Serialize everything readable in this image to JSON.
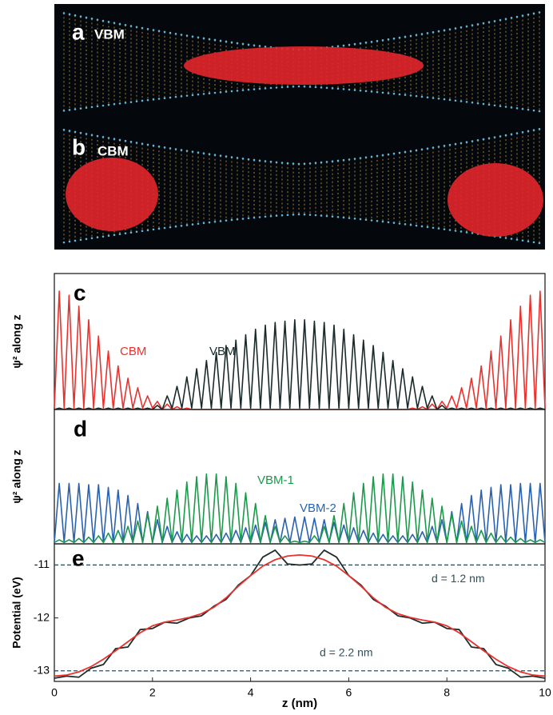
{
  "panels": [
    {
      "label": "a",
      "title": "VBM"
    },
    {
      "label": "b",
      "title": "CBM"
    }
  ],
  "chart_data": [
    {
      "type": "line",
      "panel_label": "c",
      "ylabel": "ψ² along z",
      "xlim": [
        0,
        10
      ],
      "ylim": [
        0,
        1
      ],
      "x": [
        0,
        0.1,
        0.2,
        0.3,
        0.4,
        0.5,
        0.6,
        0.7,
        0.8,
        0.9,
        1,
        1.1,
        1.2,
        1.3,
        1.4,
        1.5,
        1.6,
        1.7,
        1.8,
        1.9,
        2,
        2.1,
        2.2,
        2.3,
        2.4,
        2.5,
        2.6,
        2.7,
        2.8,
        2.9,
        3,
        3.1,
        3.2,
        3.3,
        3.4,
        3.5,
        3.6,
        3.7,
        3.8,
        3.9,
        4,
        4.1,
        4.2,
        4.3,
        4.4,
        4.5,
        4.6,
        4.7,
        4.8,
        4.9,
        5,
        5.1,
        5.2,
        5.3,
        5.4,
        5.5,
        5.6,
        5.7,
        5.8,
        5.9,
        6,
        6.1,
        6.2,
        6.3,
        6.4,
        6.5,
        6.6,
        6.7,
        6.8,
        6.9,
        7,
        7.1,
        7.2,
        7.3,
        7.4,
        7.5,
        7.6,
        7.7,
        7.8,
        7.9,
        8,
        8.1,
        8.2,
        8.3,
        8.4,
        8.5,
        8.6,
        8.7,
        8.8,
        8.9,
        9,
        9.1,
        9.2,
        9.3,
        9.4,
        9.5,
        9.6,
        9.7,
        9.8,
        9.9,
        10
      ],
      "series": [
        {
          "name": "CBM",
          "color": "#e8322e",
          "values": [
            0.01,
            0.87,
            0.01,
            0.84,
            0.01,
            0.76,
            0.01,
            0.66,
            0.01,
            0.54,
            0.01,
            0.43,
            0.01,
            0.32,
            0.01,
            0.23,
            0.01,
            0.16,
            0.01,
            0.1,
            0.01,
            0.06,
            0,
            0.04,
            0,
            0.02,
            0,
            0.01,
            0,
            0,
            0,
            0,
            0,
            0,
            0,
            0,
            0,
            0,
            0,
            0,
            0,
            0,
            0,
            0,
            0,
            0,
            0,
            0,
            0,
            0,
            0,
            0,
            0,
            0,
            0,
            0,
            0,
            0,
            0,
            0,
            0,
            0,
            0,
            0,
            0,
            0,
            0,
            0,
            0,
            0,
            0,
            0,
            0,
            0.01,
            0,
            0.02,
            0,
            0.04,
            0,
            0.06,
            0.01,
            0.1,
            0.01,
            0.16,
            0.01,
            0.23,
            0.01,
            0.32,
            0.01,
            0.43,
            0.01,
            0.54,
            0.01,
            0.66,
            0.01,
            0.76,
            0.01,
            0.84,
            0.01,
            0.87,
            0.01
          ]
        },
        {
          "name": "VBM",
          "color": "#1a2a2a",
          "values": [
            0,
            0.01,
            0,
            0.01,
            0,
            0.01,
            0,
            0.01,
            0,
            0.01,
            0,
            0.01,
            0,
            0.01,
            0,
            0.01,
            0,
            0.01,
            0,
            0.01,
            0,
            0.03,
            0,
            0.1,
            0.01,
            0.17,
            0.01,
            0.24,
            0.01,
            0.3,
            0.01,
            0.36,
            0.01,
            0.42,
            0.01,
            0.47,
            0.01,
            0.51,
            0.01,
            0.55,
            0.01,
            0.59,
            0.01,
            0.62,
            0.01,
            0.64,
            0.01,
            0.65,
            0.01,
            0.66,
            0.01,
            0.66,
            0.01,
            0.65,
            0.01,
            0.64,
            0.01,
            0.62,
            0.01,
            0.59,
            0.01,
            0.55,
            0.01,
            0.51,
            0.01,
            0.47,
            0.01,
            0.42,
            0.01,
            0.36,
            0.01,
            0.3,
            0.01,
            0.24,
            0.01,
            0.17,
            0.01,
            0.1,
            0,
            0.03,
            0,
            0.01,
            0,
            0.01,
            0,
            0.01,
            0,
            0.01,
            0,
            0.01,
            0,
            0.01,
            0,
            0.01,
            0,
            0.01,
            0,
            0.01,
            0,
            0.01,
            0
          ]
        }
      ]
    },
    {
      "type": "line",
      "panel_label": "d",
      "ylabel": "ψ² along z",
      "xlim": [
        0,
        10
      ],
      "ylim": [
        0,
        1
      ],
      "x": [
        0,
        0.1,
        0.2,
        0.3,
        0.4,
        0.5,
        0.6,
        0.7,
        0.8,
        0.9,
        1,
        1.1,
        1.2,
        1.3,
        1.4,
        1.5,
        1.6,
        1.7,
        1.8,
        1.9,
        2,
        2.1,
        2.2,
        2.3,
        2.4,
        2.5,
        2.6,
        2.7,
        2.8,
        2.9,
        3,
        3.1,
        3.2,
        3.3,
        3.4,
        3.5,
        3.6,
        3.7,
        3.8,
        3.9,
        4,
        4.1,
        4.2,
        4.3,
        4.4,
        4.5,
        4.6,
        4.7,
        4.8,
        4.9,
        5,
        5.1,
        5.2,
        5.3,
        5.4,
        5.5,
        5.6,
        5.7,
        5.8,
        5.9,
        6,
        6.1,
        6.2,
        6.3,
        6.4,
        6.5,
        6.6,
        6.7,
        6.8,
        6.9,
        7,
        7.1,
        7.2,
        7.3,
        7.4,
        7.5,
        7.6,
        7.7,
        7.8,
        7.9,
        8,
        8.1,
        8.2,
        8.3,
        8.4,
        8.5,
        8.6,
        8.7,
        8.8,
        8.9,
        9,
        9.1,
        9.2,
        9.3,
        9.4,
        9.5,
        9.6,
        9.7,
        9.8,
        9.9,
        10
      ],
      "series": [
        {
          "name": "VBM-2",
          "color": "#2a62b0",
          "values": [
            0.01,
            0.45,
            0.01,
            0.45,
            0.01,
            0.45,
            0.01,
            0.44,
            0.01,
            0.44,
            0.01,
            0.42,
            0.01,
            0.4,
            0.01,
            0.36,
            0.01,
            0.3,
            0.01,
            0.24,
            0.01,
            0.18,
            0.01,
            0.13,
            0.01,
            0.09,
            0.01,
            0.07,
            0.01,
            0.06,
            0.01,
            0.06,
            0.01,
            0.07,
            0.01,
            0.08,
            0.01,
            0.1,
            0.01,
            0.12,
            0.01,
            0.14,
            0.01,
            0.16,
            0.01,
            0.18,
            0.01,
            0.19,
            0.01,
            0.2,
            0.01,
            0.2,
            0.01,
            0.19,
            0.01,
            0.18,
            0.01,
            0.16,
            0.01,
            0.14,
            0.01,
            0.12,
            0.01,
            0.1,
            0.01,
            0.08,
            0.01,
            0.07,
            0.01,
            0.06,
            0.01,
            0.06,
            0.01,
            0.07,
            0.01,
            0.09,
            0.01,
            0.13,
            0.01,
            0.18,
            0.01,
            0.24,
            0.01,
            0.3,
            0.01,
            0.36,
            0.01,
            0.4,
            0.01,
            0.42,
            0.01,
            0.44,
            0.01,
            0.44,
            0.01,
            0.45,
            0.01,
            0.45,
            0.01,
            0.45,
            0.01
          ]
        },
        {
          "name": "VBM-1",
          "color": "#1a9a4a",
          "values": [
            0.01,
            0.03,
            0.01,
            0.03,
            0.01,
            0.04,
            0.01,
            0.05,
            0.01,
            0.06,
            0.01,
            0.08,
            0.01,
            0.1,
            0.01,
            0.13,
            0.01,
            0.17,
            0.01,
            0.22,
            0.01,
            0.28,
            0.01,
            0.34,
            0.01,
            0.4,
            0.01,
            0.46,
            0.01,
            0.5,
            0.01,
            0.52,
            0.01,
            0.52,
            0.01,
            0.5,
            0.01,
            0.45,
            0.01,
            0.38,
            0.01,
            0.3,
            0.01,
            0.21,
            0.01,
            0.13,
            0.01,
            0.06,
            0.01,
            0.02,
            0.01,
            0.02,
            0.01,
            0.06,
            0.01,
            0.13,
            0.01,
            0.21,
            0.01,
            0.3,
            0.01,
            0.38,
            0.01,
            0.45,
            0.01,
            0.5,
            0.01,
            0.52,
            0.01,
            0.52,
            0.01,
            0.5,
            0.01,
            0.46,
            0.01,
            0.4,
            0.01,
            0.34,
            0.01,
            0.28,
            0.01,
            0.22,
            0.01,
            0.17,
            0.01,
            0.13,
            0.01,
            0.1,
            0.01,
            0.08,
            0.01,
            0.06,
            0.01,
            0.05,
            0.01,
            0.04,
            0.01,
            0.03,
            0.01,
            0.03,
            0.01
          ]
        }
      ]
    },
    {
      "type": "line",
      "panel_label": "e",
      "ylabel": "Potential (eV)",
      "xlabel": "z (nm)",
      "xlim": [
        0,
        10
      ],
      "ylim": [
        -13.2,
        -10.6
      ],
      "xticks": [
        0,
        2,
        4,
        6,
        8,
        10
      ],
      "yticks": [
        -11,
        -12,
        -13
      ],
      "reference_lines": [
        {
          "value": -11,
          "label": "d = 1.2 nm"
        },
        {
          "value": -13,
          "label": "d = 2.2 nm"
        }
      ],
      "x": [
        0,
        0.25,
        0.5,
        0.75,
        1,
        1.25,
        1.5,
        1.75,
        2,
        2.25,
        2.5,
        2.75,
        3,
        3.25,
        3.5,
        3.75,
        4,
        4.25,
        4.5,
        4.75,
        5,
        5.25,
        5.5,
        5.75,
        6,
        6.25,
        6.5,
        6.75,
        7,
        7.25,
        7.5,
        7.75,
        8,
        8.25,
        8.5,
        8.75,
        9,
        9.25,
        9.5,
        9.75,
        10
      ],
      "series": [
        {
          "color": "#1f2d2d",
          "values": [
            -13.14,
            -13.1,
            -13.12,
            -12.95,
            -12.88,
            -12.58,
            -12.55,
            -12.22,
            -12.2,
            -12.08,
            -12.1,
            -12,
            -11.96,
            -11.78,
            -11.65,
            -11.38,
            -11.2,
            -10.85,
            -10.72,
            -10.98,
            -11,
            -10.98,
            -10.72,
            -10.85,
            -11.2,
            -11.38,
            -11.65,
            -11.78,
            -11.96,
            -12,
            -12.1,
            -12.08,
            -12.2,
            -12.22,
            -12.55,
            -12.58,
            -12.88,
            -12.95,
            -13.12,
            -13.1,
            -13.14
          ]
        },
        {
          "color": "#e8322e",
          "values": [
            -13.1,
            -13.08,
            -13.02,
            -12.92,
            -12.78,
            -12.62,
            -12.45,
            -12.28,
            -12.15,
            -12.08,
            -12.04,
            -11.99,
            -11.92,
            -11.8,
            -11.62,
            -11.4,
            -11.2,
            -11.02,
            -10.9,
            -10.83,
            -10.81,
            -10.83,
            -10.9,
            -11.02,
            -11.2,
            -11.4,
            -11.62,
            -11.8,
            -11.92,
            -11.99,
            -12.04,
            -12.08,
            -12.15,
            -12.28,
            -12.45,
            -12.62,
            -12.78,
            -12.92,
            -13.02,
            -13.08,
            -13.1
          ]
        }
      ]
    }
  ]
}
